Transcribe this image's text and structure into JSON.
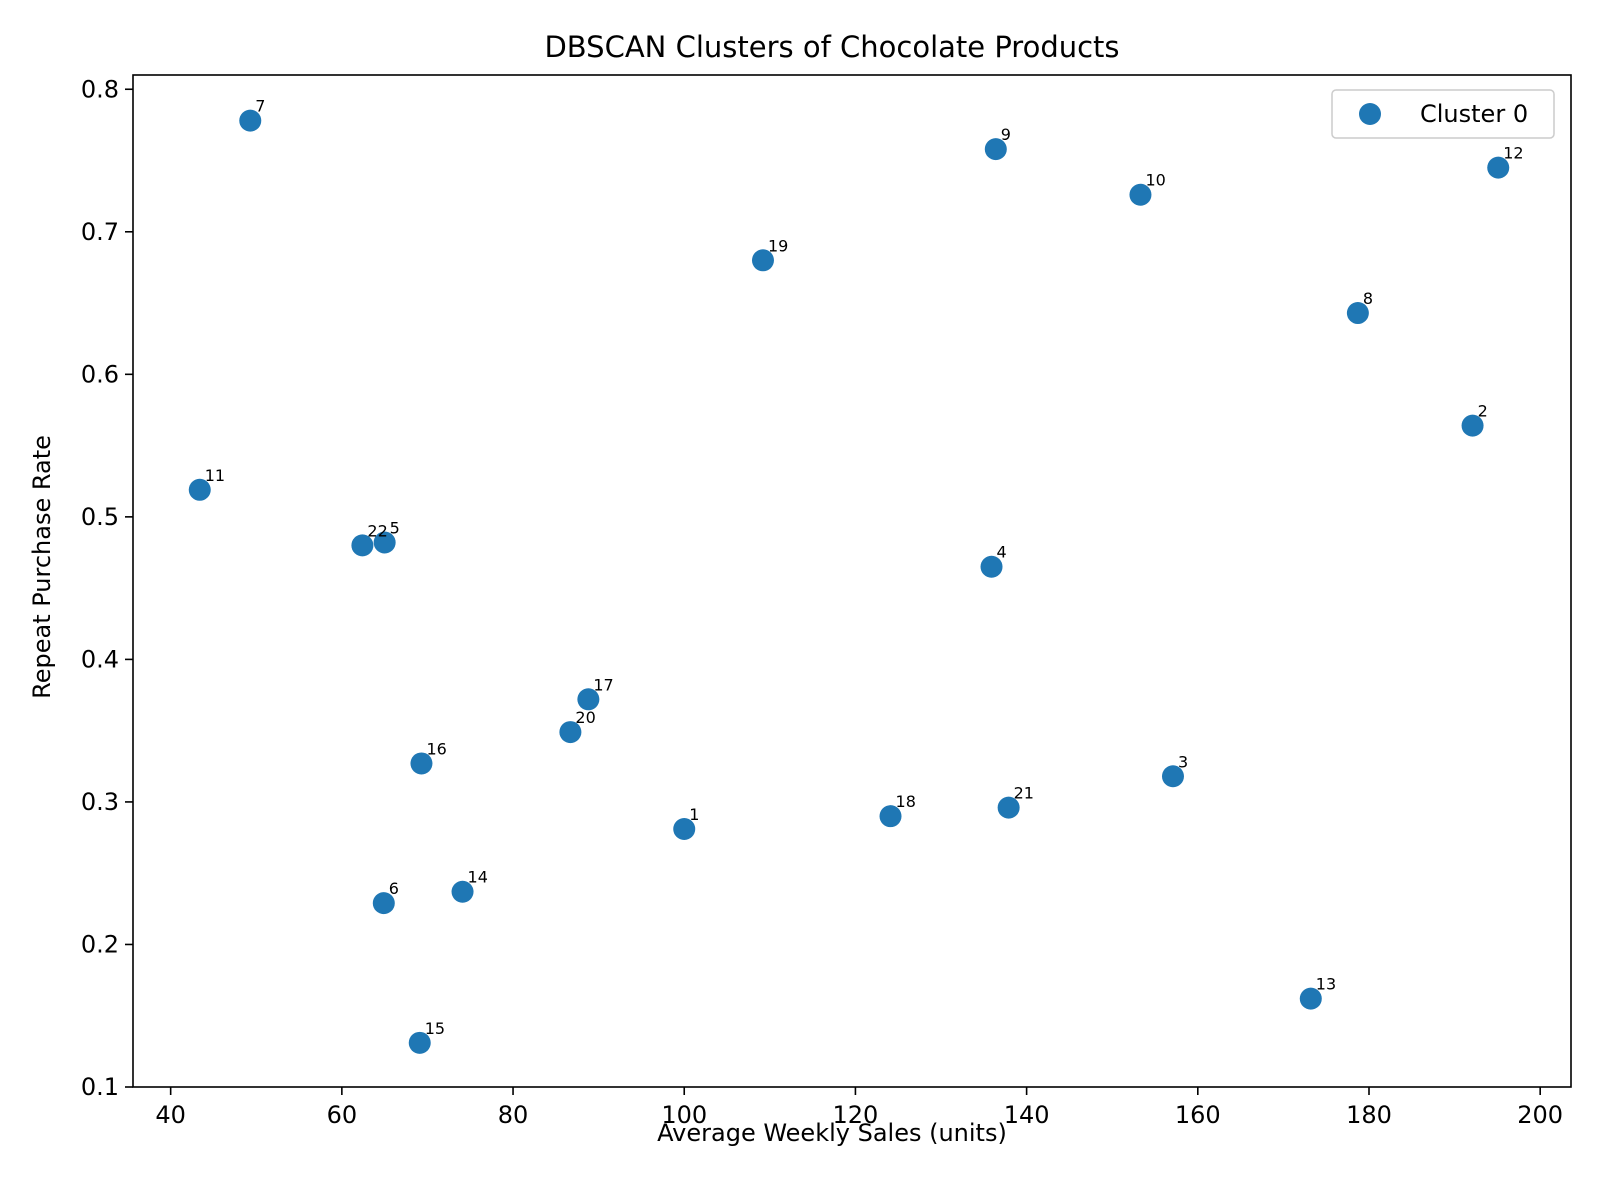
{
  "chart_data": {
    "type": "scatter",
    "title": "DBSCAN Clusters of Chocolate Products",
    "xlabel": "Average Weekly Sales (units)",
    "ylabel": "Repeat Purchase Rate",
    "xlim": [
      35.6,
      203.6
    ],
    "ylim": [
      0.1,
      0.81
    ],
    "xticks": [
      40,
      60,
      80,
      100,
      120,
      140,
      160,
      180,
      200
    ],
    "yticks": [
      0.1,
      0.2,
      0.3,
      0.4,
      0.5,
      0.6,
      0.7,
      0.8
    ],
    "grid": false,
    "legend": {
      "position": "top-right",
      "entries": [
        "Cluster 0"
      ]
    },
    "series": [
      {
        "name": "Cluster 0",
        "color": "#1f77b4",
        "points": [
          {
            "label": "1",
            "x": 100.0,
            "y": 0.281
          },
          {
            "label": "2",
            "x": 192.1,
            "y": 0.564
          },
          {
            "label": "3",
            "x": 157.1,
            "y": 0.318
          },
          {
            "label": "4",
            "x": 135.9,
            "y": 0.465
          },
          {
            "label": "5",
            "x": 65.0,
            "y": 0.482
          },
          {
            "label": "6",
            "x": 64.9,
            "y": 0.229
          },
          {
            "label": "7",
            "x": 49.3,
            "y": 0.778
          },
          {
            "label": "8",
            "x": 178.7,
            "y": 0.643
          },
          {
            "label": "9",
            "x": 136.4,
            "y": 0.758
          },
          {
            "label": "10",
            "x": 153.3,
            "y": 0.726
          },
          {
            "label": "11",
            "x": 43.4,
            "y": 0.519
          },
          {
            "label": "12",
            "x": 195.1,
            "y": 0.745
          },
          {
            "label": "13",
            "x": 173.2,
            "y": 0.162
          },
          {
            "label": "14",
            "x": 74.1,
            "y": 0.237
          },
          {
            "label": "15",
            "x": 69.1,
            "y": 0.131
          },
          {
            "label": "16",
            "x": 69.3,
            "y": 0.327
          },
          {
            "label": "17",
            "x": 88.8,
            "y": 0.372
          },
          {
            "label": "18",
            "x": 124.1,
            "y": 0.29
          },
          {
            "label": "19",
            "x": 109.2,
            "y": 0.68
          },
          {
            "label": "20",
            "x": 86.7,
            "y": 0.349
          },
          {
            "label": "21",
            "x": 137.9,
            "y": 0.296
          },
          {
            "label": "22",
            "x": 62.4,
            "y": 0.48
          }
        ]
      }
    ]
  }
}
